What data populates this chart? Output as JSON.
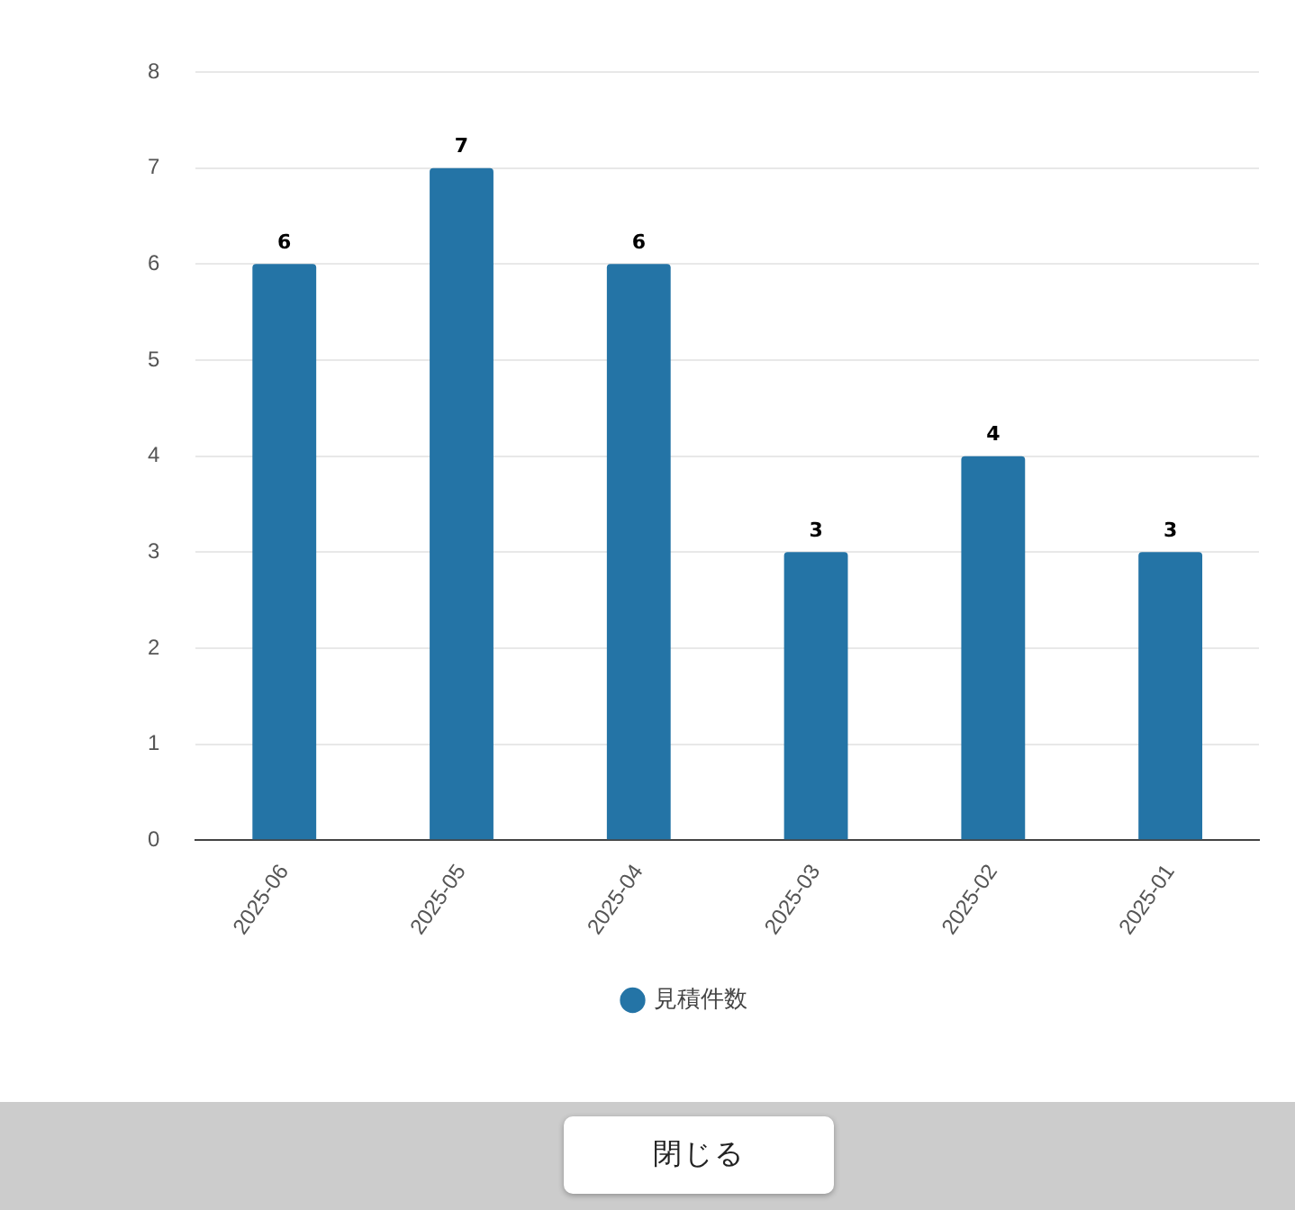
{
  "chart_data": {
    "type": "bar",
    "categories": [
      "2025-06",
      "2025-05",
      "2025-04",
      "2025-03",
      "2025-02",
      "2025-01"
    ],
    "series": [
      {
        "name": "見積件数",
        "color": "#2474a6",
        "values": [
          6,
          7,
          6,
          3,
          4,
          3
        ]
      }
    ],
    "ylim": [
      0,
      8
    ],
    "yticks": [
      0,
      1,
      2,
      3,
      4,
      5,
      6,
      7,
      8
    ],
    "grid": "y",
    "legend": "bottom",
    "data_labels": true,
    "annotations": [
      "閉じる"
    ]
  }
}
